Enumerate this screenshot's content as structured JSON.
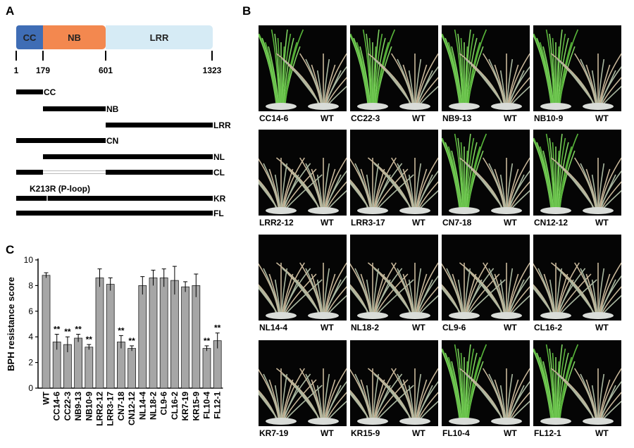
{
  "panel_a": {
    "letter": "A",
    "domains": [
      {
        "name": "CC",
        "color": "#3f6db5"
      },
      {
        "name": "NB",
        "color": "#f3884f"
      },
      {
        "name": "LRR",
        "color": "#d6ebf5"
      }
    ],
    "positions": [
      "1",
      "179",
      "601",
      "1323"
    ],
    "constructs": [
      "CC",
      "NB",
      "LRR",
      "CN",
      "NL",
      "CL",
      "KR",
      "FL"
    ],
    "mutation_label": "K213R (P-loop)"
  },
  "panel_b": {
    "letter": "B",
    "tiles": [
      {
        "line": "CC14-6",
        "wt": "WT",
        "resistant": true
      },
      {
        "line": "CC22-3",
        "wt": "WT",
        "resistant": true
      },
      {
        "line": "NB9-13",
        "wt": "WT",
        "resistant": true
      },
      {
        "line": "NB10-9",
        "wt": "WT",
        "resistant": true
      },
      {
        "line": "LRR2-12",
        "wt": "WT",
        "resistant": false
      },
      {
        "line": "LRR3-17",
        "wt": "WT",
        "resistant": false
      },
      {
        "line": "CN7-18",
        "wt": "WT",
        "resistant": true
      },
      {
        "line": "CN12-12",
        "wt": "WT",
        "resistant": true
      },
      {
        "line": "NL14-4",
        "wt": "WT",
        "resistant": false
      },
      {
        "line": "NL18-2",
        "wt": "WT",
        "resistant": false
      },
      {
        "line": "CL9-6",
        "wt": "WT",
        "resistant": false
      },
      {
        "line": "CL16-2",
        "wt": "WT",
        "resistant": false
      },
      {
        "line": "KR7-19",
        "wt": "WT",
        "resistant": false
      },
      {
        "line": "KR15-9",
        "wt": "WT",
        "resistant": false
      },
      {
        "line": "FL10-4",
        "wt": "WT",
        "resistant": true
      },
      {
        "line": "FL12-1",
        "wt": "WT",
        "resistant": true
      }
    ]
  },
  "panel_c": {
    "letter": "C",
    "bar_color": "#a6a6a6"
  },
  "chart_data": {
    "type": "bar",
    "ylabel": "BPH resistance score",
    "ylim": [
      0,
      10
    ],
    "yticks": [
      "0",
      "2",
      "4",
      "6",
      "8",
      "10"
    ],
    "categories": [
      "WT",
      "CC14-6",
      "CC22-3",
      "NB9-13",
      "NB10-9",
      "LRR2-12",
      "LRR3-17",
      "CN7-18",
      "CN12-12",
      "NL14-4",
      "NL18-2",
      "CL9-6",
      "CL16-2",
      "KR7-19",
      "KR15-9",
      "FL10-4",
      "FL12-1"
    ],
    "values": [
      8.8,
      3.6,
      3.4,
      3.9,
      3.2,
      8.6,
      8.1,
      3.6,
      3.1,
      8.0,
      8.6,
      8.6,
      8.4,
      7.9,
      8.0,
      3.1,
      3.7
    ],
    "errors": [
      0.2,
      0.6,
      0.6,
      0.3,
      0.2,
      0.7,
      0.5,
      0.5,
      0.2,
      0.7,
      0.6,
      0.7,
      1.1,
      0.4,
      0.9,
      0.2,
      0.6
    ],
    "significance": [
      "",
      "**",
      "**",
      "**",
      "**",
      "",
      "",
      "**",
      "**",
      "",
      "",
      "",
      "",
      "",
      "",
      "**",
      "**"
    ]
  }
}
